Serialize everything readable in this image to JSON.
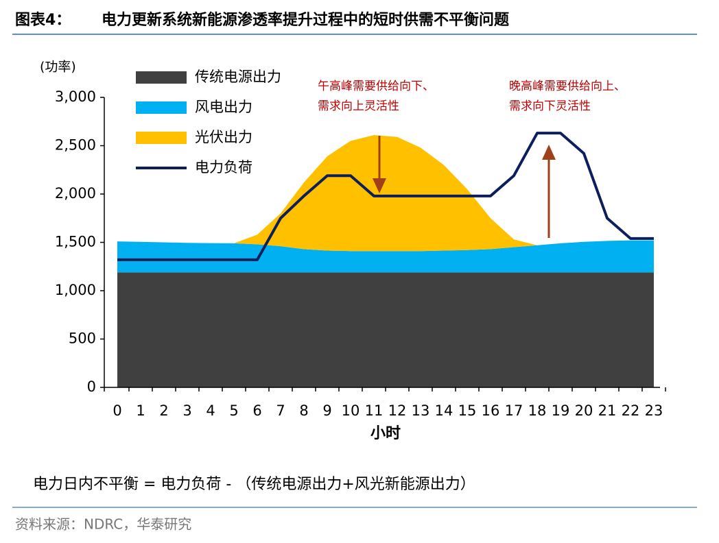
{
  "chart_data": {
    "type": "area",
    "figure_label": "图表4：",
    "title": "电力更新系统新能源渗透率提升过程中的短时供需不平衡问题",
    "y_label": "(功率)",
    "x_label": "小时",
    "categories": [
      "0",
      "1",
      "2",
      "3",
      "4",
      "5",
      "6",
      "7",
      "8",
      "9",
      "10",
      "11",
      "12",
      "13",
      "14",
      "15",
      "16",
      "17",
      "18",
      "19",
      "20",
      "21",
      "22",
      "23"
    ],
    "series": [
      {
        "name": "传统电源出力",
        "type": "area",
        "color": "#404040",
        "values": [
          1190,
          1190,
          1190,
          1190,
          1190,
          1190,
          1190,
          1190,
          1190,
          1190,
          1190,
          1190,
          1190,
          1190,
          1190,
          1190,
          1190,
          1190,
          1190,
          1190,
          1190,
          1190,
          1190,
          1190
        ]
      },
      {
        "name": "风电出力",
        "type": "area",
        "color": "#00b0f0",
        "values": [
          320,
          315,
          310,
          305,
          302,
          300,
          290,
          270,
          240,
          225,
          220,
          220,
          220,
          220,
          225,
          230,
          240,
          260,
          280,
          300,
          315,
          325,
          330,
          330
        ]
      },
      {
        "name": "光伏出力",
        "type": "area",
        "color": "#ffc000",
        "values": [
          0,
          0,
          0,
          0,
          0,
          0,
          100,
          340,
          690,
          975,
          1140,
          1200,
          1180,
          1070,
          885,
          630,
          320,
          80,
          0,
          0,
          0,
          0,
          0,
          0
        ]
      },
      {
        "name": "电力负荷",
        "type": "line",
        "color": "#0c1f5c",
        "values": [
          1320,
          1320,
          1320,
          1320,
          1320,
          1320,
          1320,
          1750,
          1980,
          2190,
          2190,
          1980,
          1980,
          1980,
          1980,
          1980,
          1980,
          2190,
          2630,
          2630,
          2420,
          1750,
          1540,
          1540
        ]
      }
    ],
    "ylim": [
      0,
      3000
    ],
    "yticks": [
      0,
      500,
      {
        "value": 1000,
        "label": "1,000"
      },
      {
        "value": 1500,
        "label": "1,500"
      },
      {
        "value": 2000,
        "label": "2,000"
      },
      {
        "value": 2500,
        "label": "2,500"
      },
      {
        "value": 3000,
        "label": "3,000"
      }
    ],
    "legend": "top-left",
    "annotations": [
      {
        "lines": [
          "午高峰需要供给向下、",
          "需求向上灵活性"
        ],
        "color": "#c00000"
      },
      {
        "lines": [
          "晚高峰需要供给向上、",
          "需求向下灵活性"
        ],
        "color": "#c00000"
      }
    ],
    "note": "电力日内不平衡 = 电力负荷 - （传统电源出力+风光新能源出力）",
    "source": "资料来源：NDRC，华泰研究"
  }
}
